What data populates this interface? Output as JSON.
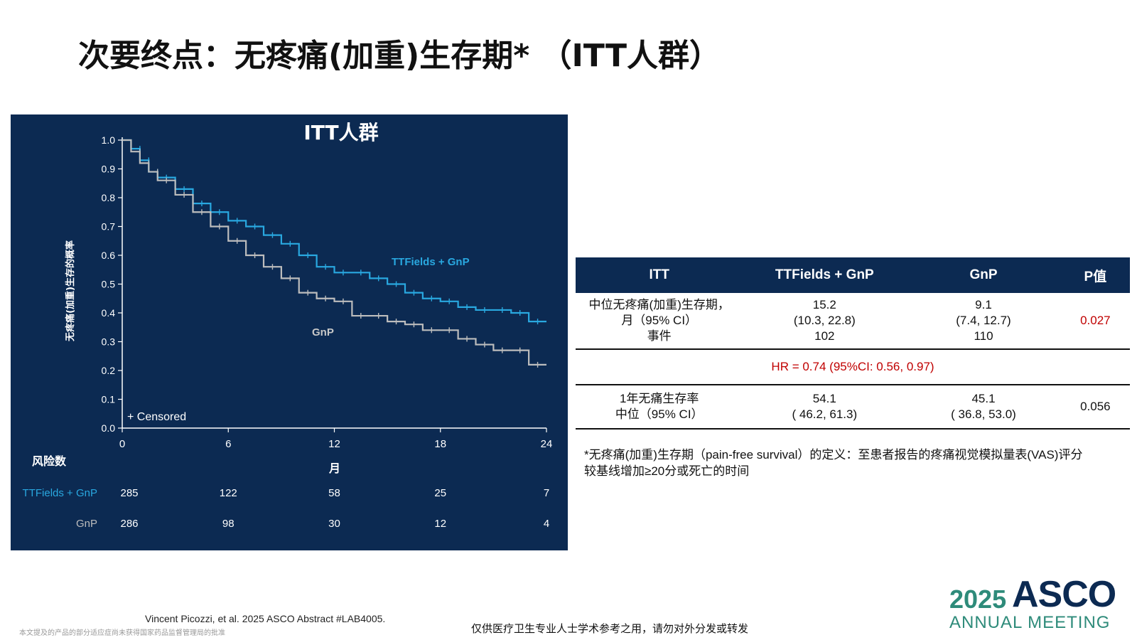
{
  "slide": {
    "title": "次要终点：无疼痛(加重)生存期*  （ITT人群）"
  },
  "chart_data": {
    "type": "line",
    "title": "ITT人群",
    "xlabel": "月",
    "ylabel": "无疼痛(加重)生存的概率",
    "xlim": [
      0,
      24
    ],
    "ylim": [
      0.0,
      1.0
    ],
    "x_ticks": [
      "0",
      "6",
      "12",
      "18",
      "24"
    ],
    "y_ticks": [
      "0.0",
      "0.1",
      "0.2",
      "0.3",
      "0.4",
      "0.5",
      "0.6",
      "0.7",
      "0.8",
      "0.9",
      "1.0"
    ],
    "censored_legend": "+ Censored",
    "colors": {
      "ttfields": "#29a8e0",
      "gnp": "#bdbdbd",
      "background": "#0c2a52"
    },
    "series": [
      {
        "name": "TTFields + GnP",
        "x": [
          0,
          0.5,
          1,
          1.5,
          2,
          3,
          4,
          5,
          6,
          7,
          8,
          9,
          10,
          11,
          12,
          13,
          14,
          15,
          16,
          17,
          18,
          19,
          20,
          21,
          22,
          23,
          24
        ],
        "y": [
          1.0,
          0.97,
          0.93,
          0.89,
          0.87,
          0.83,
          0.78,
          0.75,
          0.72,
          0.7,
          0.67,
          0.64,
          0.6,
          0.56,
          0.54,
          0.54,
          0.52,
          0.5,
          0.47,
          0.45,
          0.44,
          0.42,
          0.41,
          0.41,
          0.4,
          0.37,
          0.37
        ]
      },
      {
        "name": "GnP",
        "x": [
          0,
          0.5,
          1,
          1.5,
          2,
          3,
          4,
          5,
          6,
          7,
          8,
          9,
          10,
          11,
          12,
          13,
          14,
          15,
          16,
          17,
          18,
          19,
          20,
          21,
          22,
          23,
          24
        ],
        "y": [
          1.0,
          0.96,
          0.92,
          0.89,
          0.86,
          0.81,
          0.75,
          0.7,
          0.65,
          0.6,
          0.56,
          0.52,
          0.47,
          0.45,
          0.44,
          0.39,
          0.39,
          0.37,
          0.36,
          0.34,
          0.34,
          0.31,
          0.29,
          0.27,
          0.27,
          0.22,
          0.22
        ]
      }
    ],
    "series_labels": {
      "ttfields": "TTFields + GnP",
      "gnp": "GnP"
    },
    "risk_table": {
      "title": "风险数",
      "rows": [
        {
          "label": "TTFields + GnP",
          "values": [
            "285",
            "122",
            "58",
            "25",
            "7"
          ]
        },
        {
          "label": "GnP",
          "values": [
            "286",
            "98",
            "30",
            "12",
            "4"
          ]
        }
      ]
    }
  },
  "results_table": {
    "headers": [
      "ITT",
      "TTFields + GnP",
      "GnP",
      "P值"
    ],
    "row1": {
      "label_line1": "中位无疼痛(加重)生存期，",
      "label_line2": "月（95% CI）",
      "label_line3": "事件",
      "ttf_line1": "15.2",
      "ttf_line2": "(10.3, 22.8)",
      "ttf_line3": "102",
      "gnp_line1": "9.1",
      "gnp_line2": "(7.4, 12.7)",
      "gnp_line3": "110",
      "p": "0.027"
    },
    "hr": "HR = 0.74 (95%CI: 0.56, 0.97)",
    "row2": {
      "label_line1": "1年无痛生存率",
      "label_line2": "中位（95% CI）",
      "ttf_line1": "54.1",
      "ttf_line2": "( 46.2, 61.3)",
      "gnp_line1": "45.1",
      "gnp_line2": "( 36.8, 53.0)",
      "p": "0.056"
    }
  },
  "footnote": {
    "line1": "*无疼痛(加重)生存期（pain-free survival）的定义：至患者报告的疼痛视觉模拟量表(VAS)评分",
    "line2": "较基线增加≥20分或死亡的时间"
  },
  "footer": {
    "citation": "Vincent Picozzi, et al. 2025 ASCO Abstract #LAB4005.",
    "disclaimer_small": "本文提及的产品的部分适应症尚未获得国家药品监督管理局的批准",
    "disclaimer_center": "仅供医疗卫生专业人士学术参考之用，请勿对外分发或转发",
    "logo_year": "2025",
    "logo_name": "ASCO",
    "logo_sub": "ANNUAL MEETING"
  }
}
